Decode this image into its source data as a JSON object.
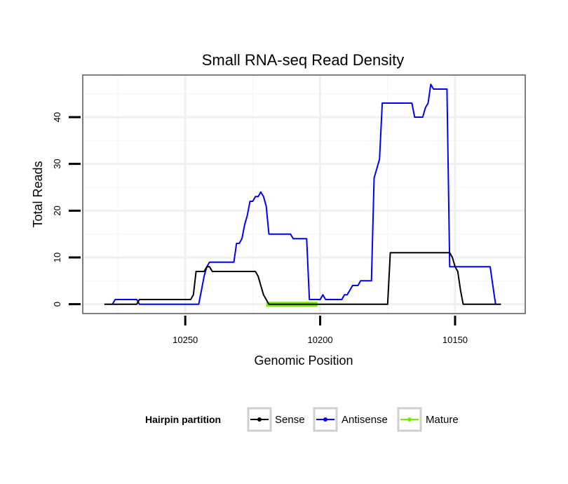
{
  "chart_data": {
    "type": "line",
    "title": "Small RNA-seq Read Density",
    "xlabel": "Genomic Position",
    "ylabel": "Total Reads",
    "x_reversed": true,
    "xlim": [
      10288,
      10124
    ],
    "ylim": [
      -2,
      49
    ],
    "xticks": [
      10250,
      10200,
      10150
    ],
    "yticks": [
      0,
      10,
      20,
      30,
      40
    ],
    "xtick_labels": [
      "10250",
      "10200",
      "10150"
    ],
    "ytick_labels": [
      "0",
      "10",
      "20",
      "30",
      "40"
    ],
    "grid": true,
    "legend": {
      "title": "Hairpin partition",
      "position": "bottom",
      "entries": [
        "Sense",
        "Antisense",
        "Mature"
      ]
    },
    "series": [
      {
        "name": "Sense",
        "color": "#000000",
        "points": [
          [
            10280,
            0
          ],
          [
            10268,
            0
          ],
          [
            10267,
            1
          ],
          [
            10248,
            1
          ],
          [
            10247,
            2
          ],
          [
            10246,
            7
          ],
          [
            10243,
            7
          ],
          [
            10242,
            8
          ],
          [
            10241,
            8
          ],
          [
            10240,
            7
          ],
          [
            10224,
            7
          ],
          [
            10223,
            6
          ],
          [
            10222,
            4
          ],
          [
            10221,
            2
          ],
          [
            10219,
            0
          ],
          [
            10175,
            0
          ],
          [
            10174,
            11
          ],
          [
            10152,
            11
          ],
          [
            10151,
            10
          ],
          [
            10150,
            8
          ],
          [
            10149,
            7
          ],
          [
            10148,
            3
          ],
          [
            10147,
            0
          ],
          [
            10133,
            0
          ]
        ]
      },
      {
        "name": "Antisense",
        "color": "#0000ff",
        "points": [
          [
            10277,
            0
          ],
          [
            10276,
            1
          ],
          [
            10268,
            1
          ],
          [
            10267,
            0
          ],
          [
            10250,
            0
          ],
          [
            10245,
            0
          ],
          [
            10244,
            3
          ],
          [
            10243,
            6
          ],
          [
            10242,
            8
          ],
          [
            10241,
            9
          ],
          [
            10232,
            9
          ],
          [
            10231,
            13
          ],
          [
            10230,
            13
          ],
          [
            10229,
            14
          ],
          [
            10228,
            17
          ],
          [
            10227,
            19
          ],
          [
            10226,
            22
          ],
          [
            10225,
            22
          ],
          [
            10224,
            23
          ],
          [
            10223,
            23
          ],
          [
            10222,
            24
          ],
          [
            10221,
            23
          ],
          [
            10220,
            21
          ],
          [
            10219,
            15
          ],
          [
            10211,
            15
          ],
          [
            10210,
            14
          ],
          [
            10205,
            14
          ],
          [
            10204,
            1
          ],
          [
            10200,
            1
          ],
          [
            10199,
            2
          ],
          [
            10198,
            1
          ],
          [
            10192,
            1
          ],
          [
            10191,
            2
          ],
          [
            10190,
            2
          ],
          [
            10189,
            3
          ],
          [
            10188,
            4
          ],
          [
            10186,
            4
          ],
          [
            10185,
            5
          ],
          [
            10181,
            5
          ],
          [
            10180,
            27
          ],
          [
            10179,
            29
          ],
          [
            10178,
            31
          ],
          [
            10177,
            43
          ],
          [
            10166,
            43
          ],
          [
            10165,
            40
          ],
          [
            10162,
            40
          ],
          [
            10161,
            42
          ],
          [
            10160,
            43
          ],
          [
            10159,
            47
          ],
          [
            10158,
            46
          ],
          [
            10153,
            46
          ],
          [
            10152,
            8
          ],
          [
            10137,
            8
          ],
          [
            10136,
            4
          ],
          [
            10135,
            0
          ]
        ]
      },
      {
        "name": "Mature",
        "color": "#77ee00",
        "points": [
          [
            10220,
            0
          ],
          [
            10201,
            0
          ]
        ]
      }
    ]
  }
}
